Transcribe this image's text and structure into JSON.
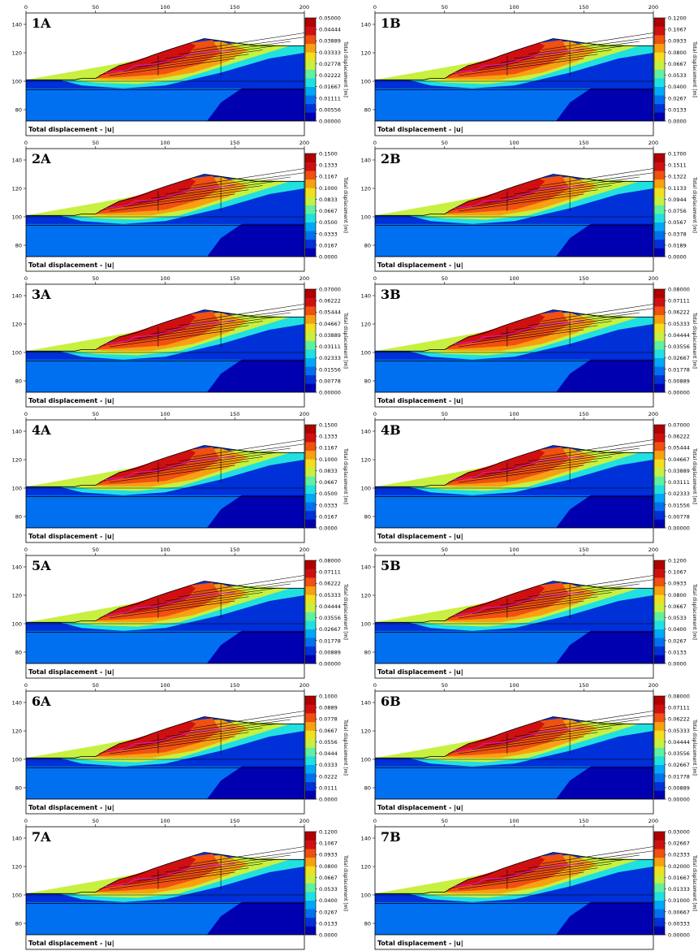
{
  "common": {
    "footer_label": "Total displacement - |u|",
    "colorbar_title": "Total displacement [m]",
    "x_ticks": [
      "0",
      "50",
      "100",
      "150",
      "200"
    ],
    "y_ticks": [
      "140",
      "120",
      "100",
      "80"
    ],
    "x_range": [
      0,
      200
    ],
    "y_range": [
      72,
      148
    ],
    "colors": [
      "#0000b0",
      "#0030d8",
      "#0070f0",
      "#00a8f8",
      "#20e0e0",
      "#60f0a0",
      "#c8f040",
      "#f0e020",
      "#f8a010",
      "#f05010",
      "#d01010",
      "#b00000"
    ]
  },
  "chart_data": [
    {
      "type": "heatmap",
      "title": "1A",
      "colorbar_ticks": [
        "0.05000",
        "0.04444",
        "0.03889",
        "0.03333",
        "0.02778",
        "0.02222",
        "0.01667",
        "0.01111",
        "0.00556",
        "0.00000"
      ],
      "colorbar_range": [
        0,
        0.05
      ],
      "xlabel": "",
      "ylabel": ""
    },
    {
      "type": "heatmap",
      "title": "1B",
      "colorbar_ticks": [
        "0.1200",
        "0.1067",
        "0.0933",
        "0.0800",
        "0.0667",
        "0.0533",
        "0.0400",
        "0.0267",
        "0.0133",
        "0.0000"
      ],
      "colorbar_range": [
        0,
        0.12
      ],
      "xlabel": "",
      "ylabel": ""
    },
    {
      "type": "heatmap",
      "title": "2A",
      "colorbar_ticks": [
        "0.1500",
        "0.1333",
        "0.1167",
        "0.1000",
        "0.0833",
        "0.0667",
        "0.0500",
        "0.0333",
        "0.0167",
        "0.0000"
      ],
      "colorbar_range": [
        0,
        0.15
      ],
      "xlabel": "",
      "ylabel": ""
    },
    {
      "type": "heatmap",
      "title": "2B",
      "colorbar_ticks": [
        "0.1700",
        "0.1511",
        "0.1322",
        "0.1133",
        "0.0944",
        "0.0756",
        "0.0567",
        "0.0378",
        "0.0189",
        "0.0000"
      ],
      "colorbar_range": [
        0,
        0.17
      ],
      "xlabel": "",
      "ylabel": ""
    },
    {
      "type": "heatmap",
      "title": "3A",
      "colorbar_ticks": [
        "0.07000",
        "0.06222",
        "0.05444",
        "0.04667",
        "0.03889",
        "0.03111",
        "0.02333",
        "0.01556",
        "0.00778",
        "0.00000"
      ],
      "colorbar_range": [
        0,
        0.07
      ],
      "xlabel": "",
      "ylabel": ""
    },
    {
      "type": "heatmap",
      "title": "3B",
      "colorbar_ticks": [
        "0.08000",
        "0.07111",
        "0.06222",
        "0.05333",
        "0.04444",
        "0.03556",
        "0.02667",
        "0.01778",
        "0.00889",
        "0.00000"
      ],
      "colorbar_range": [
        0,
        0.08
      ],
      "xlabel": "",
      "ylabel": ""
    },
    {
      "type": "heatmap",
      "title": "4A",
      "colorbar_ticks": [
        "0.1500",
        "0.1333",
        "0.1167",
        "0.1000",
        "0.0833",
        "0.0667",
        "0.0500",
        "0.0333",
        "0.0167",
        "0.0000"
      ],
      "colorbar_range": [
        0,
        0.15
      ],
      "xlabel": "",
      "ylabel": ""
    },
    {
      "type": "heatmap",
      "title": "4B",
      "colorbar_ticks": [
        "0.07000",
        "0.06222",
        "0.05444",
        "0.04667",
        "0.03889",
        "0.03111",
        "0.02333",
        "0.01556",
        "0.00778",
        "0.00000"
      ],
      "colorbar_range": [
        0,
        0.07
      ],
      "xlabel": "",
      "ylabel": ""
    },
    {
      "type": "heatmap",
      "title": "5A",
      "colorbar_ticks": [
        "0.08000",
        "0.07111",
        "0.06222",
        "0.05333",
        "0.04444",
        "0.03556",
        "0.02667",
        "0.01778",
        "0.00889",
        "0.00000"
      ],
      "colorbar_range": [
        0,
        0.08
      ],
      "xlabel": "",
      "ylabel": ""
    },
    {
      "type": "heatmap",
      "title": "5B",
      "colorbar_ticks": [
        "0.1200",
        "0.1067",
        "0.0933",
        "0.0800",
        "0.0667",
        "0.0533",
        "0.0400",
        "0.0267",
        "0.0133",
        "0.0000"
      ],
      "colorbar_range": [
        0,
        0.12
      ],
      "xlabel": "",
      "ylabel": ""
    },
    {
      "type": "heatmap",
      "title": "6A",
      "colorbar_ticks": [
        "0.1000",
        "0.0889",
        "0.0778",
        "0.0667",
        "0.0556",
        "0.0444",
        "0.0333",
        "0.0222",
        "0.0111",
        "0.0000"
      ],
      "colorbar_range": [
        0,
        0.1
      ],
      "xlabel": "",
      "ylabel": ""
    },
    {
      "type": "heatmap",
      "title": "6B",
      "colorbar_ticks": [
        "0.08000",
        "0.07111",
        "0.06222",
        "0.05333",
        "0.04444",
        "0.03556",
        "0.02667",
        "0.01778",
        "0.00889",
        "0.00000"
      ],
      "colorbar_range": [
        0,
        0.08
      ],
      "xlabel": "",
      "ylabel": ""
    },
    {
      "type": "heatmap",
      "title": "7A",
      "colorbar_ticks": [
        "0.1200",
        "0.1067",
        "0.0933",
        "0.0800",
        "0.0667",
        "0.0533",
        "0.0400",
        "0.0267",
        "0.0133",
        "0.0000"
      ],
      "colorbar_range": [
        0,
        0.12
      ],
      "xlabel": "",
      "ylabel": ""
    },
    {
      "type": "heatmap",
      "title": "7B",
      "colorbar_ticks": [
        "0.03000",
        "0.02667",
        "0.02333",
        "0.02000",
        "0.01667",
        "0.01333",
        "0.01000",
        "0.00667",
        "0.00333",
        "0.00000"
      ],
      "colorbar_range": [
        0,
        0.03
      ],
      "xlabel": "",
      "ylabel": ""
    }
  ]
}
